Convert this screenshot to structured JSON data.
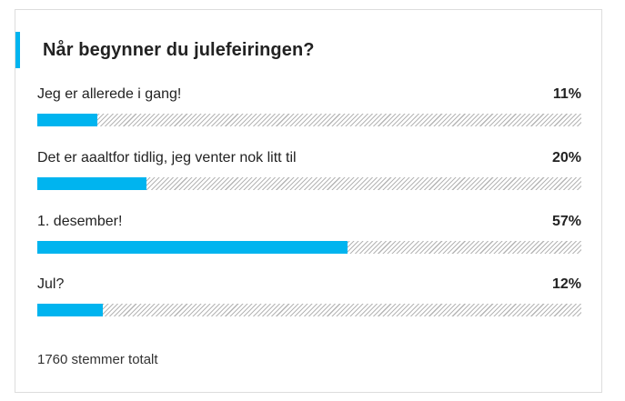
{
  "poll": {
    "question": "Når begynner du julefeiringen?",
    "options": [
      {
        "label": "Jeg er allerede i gang!",
        "percent_text": "11%",
        "fraction": 0.11
      },
      {
        "label": "Det er aaaltfor tidlig, jeg venter nok litt til",
        "percent_text": "20%",
        "fraction": 0.2
      },
      {
        "label": "1. desember!",
        "percent_text": "57%",
        "fraction": 0.57
      },
      {
        "label": "Jul?",
        "percent_text": "12%",
        "fraction": 0.12
      }
    ],
    "total_votes": "1760 stemmer totalt"
  },
  "colors": {
    "accent": "#00b4ef",
    "stripe": "#b5b5b5",
    "border": "#dddddd"
  }
}
